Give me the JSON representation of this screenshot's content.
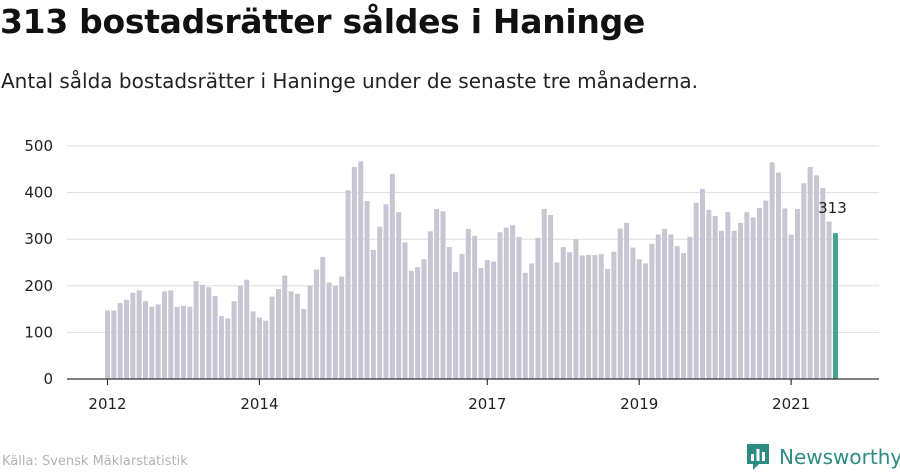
{
  "title": "313 bostadsrätter såldes i Haninge",
  "subtitle": "Antal sålda bostadsrätter i Haninge under de senaste tre månaderna.",
  "source": "Källa: Svensk Mäklarstatistik",
  "brand": {
    "name": "Newsworthy",
    "icon": "newsworthy-logo-icon"
  },
  "colors": {
    "bar": "#c8c6d2",
    "highlight": "#4a9e93",
    "grid": "#dddddd",
    "axis": "#333333",
    "brand": "#2c8c82"
  },
  "chart_data": {
    "type": "bar",
    "title": "313 bostadsrätter såldes i Haninge",
    "xlabel": "",
    "ylabel": "",
    "ylim": [
      0,
      500
    ],
    "yticks": [
      0,
      100,
      200,
      300,
      400,
      500
    ],
    "xticks": [
      {
        "label": "2012",
        "index": 0
      },
      {
        "label": "2014",
        "index": 24
      },
      {
        "label": "2017",
        "index": 60
      },
      {
        "label": "2019",
        "index": 84
      },
      {
        "label": "2021",
        "index": 108
      }
    ],
    "start": "2012-01",
    "values": [
      147,
      147,
      163,
      170,
      185,
      190,
      167,
      155,
      160,
      188,
      190,
      155,
      157,
      155,
      210,
      202,
      197,
      178,
      135,
      130,
      167,
      200,
      213,
      145,
      132,
      125,
      177,
      193,
      222,
      188,
      183,
      150,
      200,
      235,
      262,
      207,
      200,
      220,
      405,
      455,
      467,
      382,
      277,
      327,
      375,
      440,
      358,
      293,
      232,
      240,
      257,
      317,
      365,
      360,
      283,
      230,
      268,
      322,
      307,
      238,
      255,
      252,
      315,
      325,
      330,
      305,
      228,
      248,
      303,
      365,
      352,
      250,
      283,
      272,
      300,
      265,
      266,
      266,
      268,
      236,
      273,
      323,
      335,
      282,
      257,
      248,
      290,
      310,
      322,
      310,
      285,
      270,
      305,
      378,
      408,
      363,
      350,
      318,
      358,
      318,
      335,
      358,
      347,
      367,
      383,
      465,
      443,
      366,
      310,
      365,
      420,
      455,
      437,
      410,
      338,
      313
    ],
    "highlight_label": "313",
    "highlight_index": 115
  }
}
